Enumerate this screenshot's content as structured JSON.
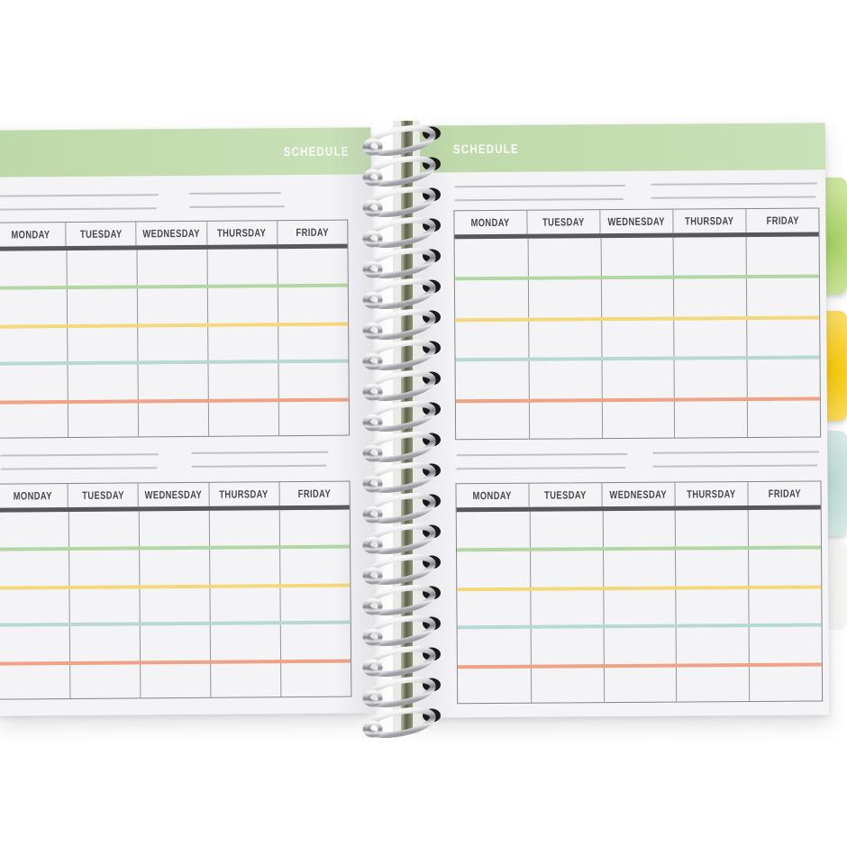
{
  "planner": {
    "left_page": {
      "header_title": "SCHEDULE"
    },
    "right_page": {
      "header_title": "SCHEDULE"
    },
    "days": [
      "MONDAY",
      "TUESDAY",
      "WEDNESDAY",
      "THURSDAY",
      "FRIDAY"
    ],
    "tables_per_page": 2,
    "colors": {
      "header_bar_green": "#c3ddb0",
      "header_divider_bar": "#57575e",
      "paper": "#f4f4f7",
      "row_stripes": [
        "#b2d7a5",
        "#f5d87b",
        "#b6d9d3",
        "#efa285"
      ]
    },
    "tabs": [
      {
        "name": "green-tab",
        "color": "#bede84"
      },
      {
        "name": "yellow-tab",
        "color": "#fad33a"
      },
      {
        "name": "teal-tab",
        "color": "#cfe5df"
      }
    ],
    "binding": {
      "style": "wire-o-spiral",
      "coil_count": 20,
      "color": "silver"
    }
  }
}
